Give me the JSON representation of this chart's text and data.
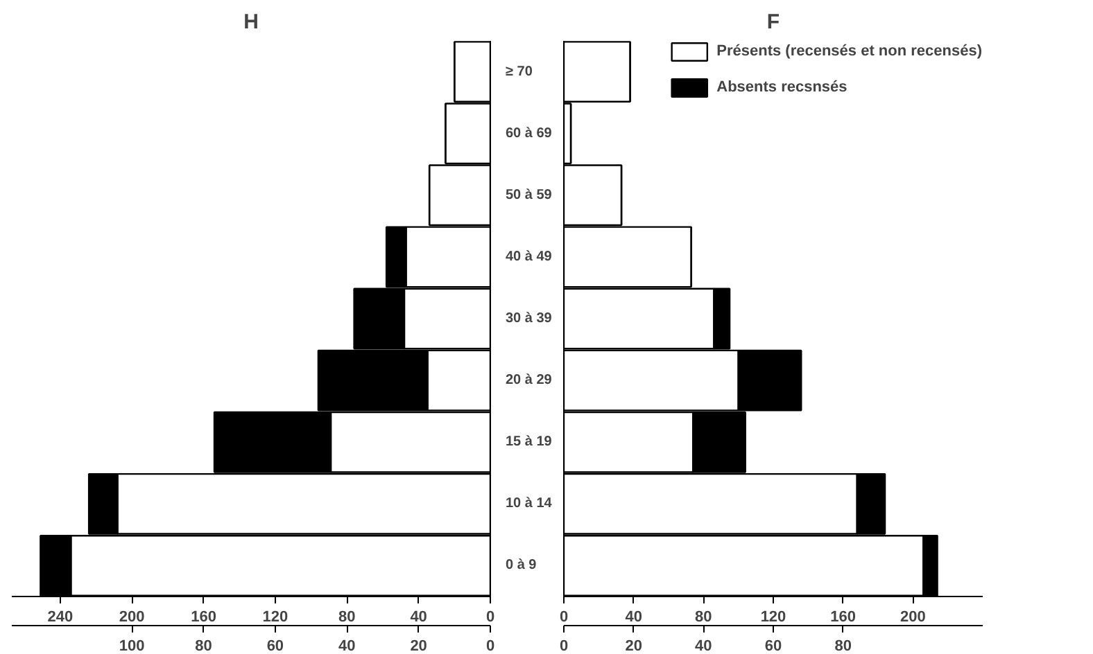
{
  "chart_data": [
    {
      "type": "bar",
      "title": "H",
      "orientation": "horizontal",
      "stacked": true,
      "categories": [
        "≥ 70",
        "60 à 69",
        "50 à 59",
        "40 à 49",
        "30 à 39",
        "20 à 29",
        "15 à 19",
        "10 à 14",
        "0 à 9"
      ],
      "series": [
        {
          "name": "Présents (recensés et non recensés)",
          "color": "#ffffff",
          "values": [
            20,
            25,
            34,
            47,
            48,
            35,
            89,
            208,
            234
          ]
        },
        {
          "name": "Absents recsnsés",
          "color": "#000000",
          "values": [
            0,
            0,
            0,
            11,
            28,
            61,
            65,
            16,
            17
          ]
        }
      ],
      "xlim": [
        267,
        0
      ],
      "xticks": [
        240,
        200,
        160,
        120,
        80,
        40,
        0
      ],
      "x2lim": [
        133.5,
        0
      ],
      "x2ticks": [
        100,
        80,
        60,
        40,
        20,
        0
      ],
      "legend": "top right",
      "grid": false
    },
    {
      "type": "bar",
      "title": "F",
      "orientation": "horizontal",
      "stacked": true,
      "categories": [
        null,
        null,
        null,
        null,
        null,
        null,
        null,
        null,
        null
      ],
      "series": [
        {
          "color": "#ffffff",
          "values": [
            38,
            4,
            33,
            73,
            86,
            100,
            74,
            168,
            206
          ]
        },
        {
          "color": "#000000",
          "values": [
            0,
            0,
            0,
            0,
            9,
            36,
            30,
            16,
            8
          ]
        }
      ],
      "xlim": [
        0,
        240
      ],
      "xticks": [
        0,
        40,
        80,
        120,
        160,
        200
      ],
      "x2lim": [
        0,
        120
      ],
      "x2ticks": [
        0,
        20,
        40,
        60,
        80
      ],
      "grid": false
    }
  ]
}
